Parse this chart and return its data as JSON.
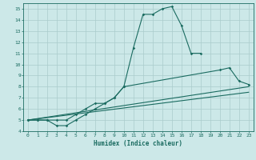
{
  "title": "",
  "xlabel": "Humidex (Indice chaleur)",
  "bg_color": "#cce8e8",
  "grid_color": "#aacccc",
  "line_color": "#1a6b60",
  "xlim": [
    -0.5,
    23.5
  ],
  "ylim": [
    4,
    15.5
  ],
  "xticks": [
    0,
    1,
    2,
    3,
    4,
    5,
    6,
    7,
    8,
    9,
    10,
    11,
    12,
    13,
    14,
    15,
    16,
    17,
    18,
    19,
    20,
    21,
    22,
    23
  ],
  "yticks": [
    4,
    5,
    6,
    7,
    8,
    9,
    10,
    11,
    12,
    13,
    14,
    15
  ],
  "series1_x": [
    0,
    1,
    2,
    3,
    4,
    5,
    6,
    7,
    8,
    9,
    10,
    11,
    12,
    13,
    14,
    15,
    16,
    17,
    18
  ],
  "series1_y": [
    5.0,
    5.0,
    5.0,
    4.5,
    4.5,
    5.0,
    5.5,
    6.0,
    6.5,
    7.0,
    8.0,
    11.5,
    14.5,
    14.5,
    15.0,
    15.2,
    13.5,
    11.0,
    11.0
  ],
  "series2_x": [
    0,
    1,
    2,
    3,
    4,
    5,
    6,
    7,
    8,
    9,
    10,
    20,
    21,
    22,
    23
  ],
  "series2_y": [
    5.0,
    5.0,
    5.0,
    5.0,
    5.0,
    5.5,
    6.0,
    6.5,
    6.5,
    7.0,
    8.0,
    9.5,
    9.7,
    8.5,
    8.2
  ],
  "line1_x": [
    0,
    23
  ],
  "line1_y": [
    5.0,
    8.0
  ],
  "line2_x": [
    0,
    23
  ],
  "line2_y": [
    5.0,
    7.5
  ]
}
